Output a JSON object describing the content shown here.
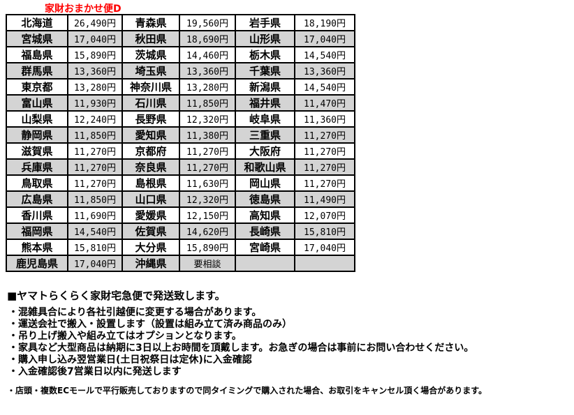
{
  "title": "家財おまかせ便D",
  "colors": {
    "title_red": "#ff0000",
    "row_shade": "#d4d4d4",
    "border": "#000000"
  },
  "fee_table": {
    "rows": [
      [
        "北海道",
        "26,490円",
        "青森県",
        "19,560円",
        "岩手県",
        "18,190円"
      ],
      [
        "宮城県",
        "17,040円",
        "秋田県",
        "18,690円",
        "山形県",
        "17,040円"
      ],
      [
        "福島県",
        "15,890円",
        "茨城県",
        "14,460円",
        "栃木県",
        "14,540円"
      ],
      [
        "群馬県",
        "13,360円",
        "埼玉県",
        "13,360円",
        "千葉県",
        "13,360円"
      ],
      [
        "東京都",
        "13,280円",
        "神奈川県",
        "13,280円",
        "新潟県",
        "14,540円"
      ],
      [
        "富山県",
        "11,930円",
        "石川県",
        "11,850円",
        "福井県",
        "11,470円"
      ],
      [
        "山梨県",
        "12,240円",
        "長野県",
        "12,320円",
        "岐阜県",
        "11,360円"
      ],
      [
        "静岡県",
        "11,850円",
        "愛知県",
        "11,380円",
        "三重県",
        "11,270円"
      ],
      [
        "滋賀県",
        "11,270円",
        "京都府",
        "11,270円",
        "大阪府",
        "11,270円"
      ],
      [
        "兵庫県",
        "11,270円",
        "奈良県",
        "11,270円",
        "和歌山県",
        "11,270円"
      ],
      [
        "鳥取県",
        "11,270円",
        "島根県",
        "11,630円",
        "岡山県",
        "11,270円"
      ],
      [
        "広島県",
        "11,850円",
        "山口県",
        "12,320円",
        "徳島県",
        "11,490円"
      ],
      [
        "香川県",
        "11,690円",
        "愛媛県",
        "12,150円",
        "高知県",
        "12,070円"
      ],
      [
        "福岡県",
        "14,540円",
        "佐賀県",
        "14,620円",
        "長崎県",
        "15,810円"
      ],
      [
        "熊本県",
        "15,810円",
        "大分県",
        "15,890円",
        "宮崎県",
        "17,040円"
      ],
      [
        "鹿児島県",
        "17,040円",
        "沖縄県",
        "要相談",
        "",
        ""
      ]
    ]
  },
  "shipping_info": {
    "heading": "■ヤマトらくらく家財宅急便で発送致します。",
    "notes": [
      "・混雑具合により各社引越便に変更する場合があります。",
      "・運送会社で搬入・設置します（設置は組み立て済み商品のみ）",
      "・吊り上げ搬入や組み立てはオプションとなります。",
      "・家具など大型商品は納期に3日以上お時間を頂戴します。お急ぎの場合は事前にお問い合わせください。",
      "・購入申し込み翌営業日(土日祝祭日は定休)に入金確認",
      "・入金確認後7営業日以内に発送します"
    ],
    "fine_print": "・店頭・複数ECモールで平行販売しておりますので同タイミングで購入された場合、お取引をキャンセル頂く場合があります。"
  }
}
